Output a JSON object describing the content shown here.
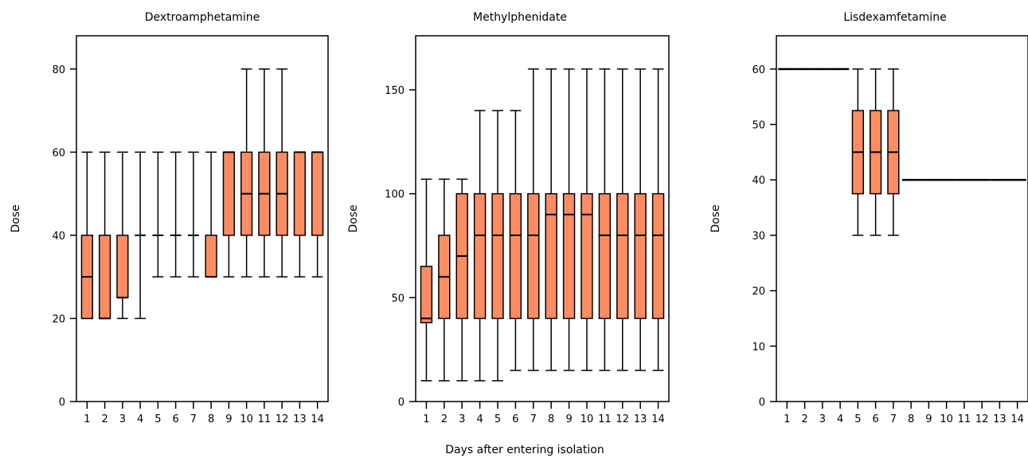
{
  "figure": {
    "xlabel": "Days after entering isolation",
    "colors": {
      "box_fill": "#FC8D62",
      "stroke": "#000000"
    }
  },
  "chart_data": [
    {
      "type": "box",
      "title": "Dextroamphetamine",
      "xlabel": "Days after entering isolation",
      "ylabel": "Dose",
      "ylim": [
        0,
        88
      ],
      "yticks": [
        0,
        20,
        40,
        60,
        80
      ],
      "categories": [
        "1",
        "2",
        "3",
        "4",
        "5",
        "6",
        "7",
        "8",
        "9",
        "10",
        "11",
        "12",
        "13",
        "14"
      ],
      "boxes": [
        {
          "min": 20,
          "q1": 20,
          "median": 30,
          "q3": 40,
          "max": 60
        },
        {
          "min": 20,
          "q1": 20,
          "median": 20,
          "q3": 40,
          "max": 60
        },
        {
          "min": 20,
          "q1": 25,
          "median": 25,
          "q3": 40,
          "max": 60
        },
        {
          "min": 20,
          "q1": 40,
          "median": 40,
          "q3": 40,
          "max": 60
        },
        {
          "min": 30,
          "q1": 40,
          "median": 40,
          "q3": 40,
          "max": 60
        },
        {
          "min": 30,
          "q1": 40,
          "median": 40,
          "q3": 40,
          "max": 60
        },
        {
          "min": 30,
          "q1": 40,
          "median": 40,
          "q3": 40,
          "max": 60
        },
        {
          "min": 30,
          "q1": 30,
          "median": 30,
          "q3": 40,
          "max": 60
        },
        {
          "min": 30,
          "q1": 40,
          "median": 60,
          "q3": 60,
          "max": 60
        },
        {
          "min": 30,
          "q1": 40,
          "median": 50,
          "q3": 60,
          "max": 80
        },
        {
          "min": 30,
          "q1": 40,
          "median": 50,
          "q3": 60,
          "max": 80
        },
        {
          "min": 30,
          "q1": 40,
          "median": 50,
          "q3": 60,
          "max": 80
        },
        {
          "min": 30,
          "q1": 40,
          "median": 60,
          "q3": 60,
          "max": 60
        },
        {
          "min": 30,
          "q1": 40,
          "median": 60,
          "q3": 60,
          "max": 60
        }
      ]
    },
    {
      "type": "box",
      "title": "Methylphenidate",
      "xlabel": "Days after entering isolation",
      "ylabel": "Dose",
      "ylim": [
        0,
        176
      ],
      "yticks": [
        0,
        50,
        100,
        150
      ],
      "categories": [
        "1",
        "2",
        "3",
        "4",
        "5",
        "6",
        "7",
        "8",
        "9",
        "10",
        "11",
        "12",
        "13",
        "14"
      ],
      "boxes": [
        {
          "min": 10,
          "q1": 38,
          "median": 40,
          "q3": 65,
          "max": 107
        },
        {
          "min": 10,
          "q1": 40,
          "median": 60,
          "q3": 80,
          "max": 107
        },
        {
          "min": 10,
          "q1": 40,
          "median": 70,
          "q3": 100,
          "max": 107
        },
        {
          "min": 10,
          "q1": 40,
          "median": 80,
          "q3": 100,
          "max": 140
        },
        {
          "min": 10,
          "q1": 40,
          "median": 80,
          "q3": 100,
          "max": 140
        },
        {
          "min": 15,
          "q1": 40,
          "median": 80,
          "q3": 100,
          "max": 140
        },
        {
          "min": 15,
          "q1": 40,
          "median": 80,
          "q3": 100,
          "max": 160
        },
        {
          "min": 15,
          "q1": 40,
          "median": 90,
          "q3": 100,
          "max": 160
        },
        {
          "min": 15,
          "q1": 40,
          "median": 90,
          "q3": 100,
          "max": 160
        },
        {
          "min": 15,
          "q1": 40,
          "median": 90,
          "q3": 100,
          "max": 160
        },
        {
          "min": 15,
          "q1": 40,
          "median": 80,
          "q3": 100,
          "max": 160
        },
        {
          "min": 15,
          "q1": 40,
          "median": 80,
          "q3": 100,
          "max": 160
        },
        {
          "min": 15,
          "q1": 40,
          "median": 80,
          "q3": 100,
          "max": 160
        },
        {
          "min": 15,
          "q1": 40,
          "median": 80,
          "q3": 100,
          "max": 160
        }
      ]
    },
    {
      "type": "box",
      "title": "Lisdexamfetamine",
      "xlabel": "Days after entering isolation",
      "ylabel": "Dose",
      "ylim": [
        0,
        66
      ],
      "yticks": [
        0,
        10,
        20,
        30,
        40,
        50,
        60
      ],
      "categories": [
        "1",
        "2",
        "3",
        "4",
        "5",
        "6",
        "7",
        "8",
        "9",
        "10",
        "11",
        "12",
        "13",
        "14"
      ],
      "boxes": [
        {
          "min": 60,
          "q1": 60,
          "median": 60,
          "q3": 60,
          "max": 60
        },
        {
          "min": 60,
          "q1": 60,
          "median": 60,
          "q3": 60,
          "max": 60
        },
        {
          "min": 60,
          "q1": 60,
          "median": 60,
          "q3": 60,
          "max": 60
        },
        {
          "min": 60,
          "q1": 60,
          "median": 60,
          "q3": 60,
          "max": 60
        },
        {
          "min": 30,
          "q1": 37.5,
          "median": 45,
          "q3": 52.5,
          "max": 60
        },
        {
          "min": 30,
          "q1": 37.5,
          "median": 45,
          "q3": 52.5,
          "max": 60
        },
        {
          "min": 30,
          "q1": 37.5,
          "median": 45,
          "q3": 52.5,
          "max": 60
        },
        {
          "min": 40,
          "q1": 40,
          "median": 40,
          "q3": 40,
          "max": 40
        },
        {
          "min": 40,
          "q1": 40,
          "median": 40,
          "q3": 40,
          "max": 40
        },
        {
          "min": 40,
          "q1": 40,
          "median": 40,
          "q3": 40,
          "max": 40
        },
        {
          "min": 40,
          "q1": 40,
          "median": 40,
          "q3": 40,
          "max": 40
        },
        {
          "min": 40,
          "q1": 40,
          "median": 40,
          "q3": 40,
          "max": 40
        },
        {
          "min": 40,
          "q1": 40,
          "median": 40,
          "q3": 40,
          "max": 40
        },
        {
          "min": 40,
          "q1": 40,
          "median": 40,
          "q3": 40,
          "max": 40
        }
      ]
    }
  ]
}
